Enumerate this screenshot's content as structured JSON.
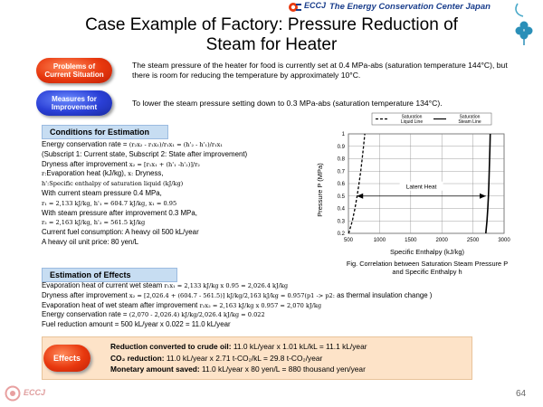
{
  "header": {
    "org_short": "ECCJ",
    "org_full": "The Energy Conservation Center Japan"
  },
  "title_line1": "Case Example of Factory: Pressure Reduction of",
  "title_line2": "Steam for Heater",
  "problems": {
    "label_line1": "Problems of",
    "label_line2": "Current Situation",
    "text": "The steam pressure of the heater for food is currently set at 0.4 MPa-abs (saturation temperature 144°C), but there is room for reducing the temperature by approximately 10°C."
  },
  "measures": {
    "label_line1": "Measures for",
    "label_line2": "Improvement",
    "text": "To lower the steam pressure setting down to 0.3 MPa-abs (saturation temperature 134°C)."
  },
  "conditions": {
    "heading": "Conditions for Estimation",
    "lines": {
      "l1a": "Energy conservation rate = ",
      "l1b": "(r₂x₂ - r₁x₁)/r₁x₁ = (h'₂ - h'₁)/r₁x₁",
      "l2": "(Subscript 1: Current state, Subscript 2: State after improvement)",
      "l3a": "Dryness after improvement ",
      "l3b": "x₂ = [r₁x₁ + (h'₁ -h'₂)]/r₂",
      "l4a": "r:",
      "l4b": "Evaporation heat (kJ/kg), ",
      "l4c": "x:",
      "l4d": " Dryness,",
      "l5a": "h':",
      "l5b": "Specific enthalpy of saturation liquid (kJ/kg)",
      "l6": "With current steam pressure 0.4 MPa,",
      "l7": "r₁ = 2,133 kJ/kg, h'₁ = 604.7 kJ/kg, x₁ = 0.95",
      "l8": "With steam pressure after improvement 0.3 MPa,",
      "l9": "r₂ = 2,163 kJ/kg, h'₂ = 561.5 kJ/kg",
      "l10": "Current fuel consumption: A heavy oil 500 kL/year",
      "l11": "A heavy oil unit price: 80 yen/L"
    }
  },
  "estimation": {
    "heading": "Estimation of Effects",
    "e1a": "Evaporation heat of current wet steam ",
    "e1b": "r₁x₁ = 2,133 kJ/kg x 0.95 = 2,026.4 kJ/kg",
    "e2a": "Dryness after improvement ",
    "e2b": "x₂ = [2,026.4 + (604.7 - 561.5)] kJ/kg/2,163 kJ/kg = 0.957(p1 -> p2:",
    "e2c": " as thermal insulation change )",
    "e3a": "Evaporation heat of wet steam after improvement ",
    "e3b": "r₂x₂ = 2,163 kJ/kg x 0.957 = 2,070 kJ/kg",
    "e4a": "Energy conservation rate = ",
    "e4b": "(2,070 - 2,026.4) kJ/kg/2,026.4 kJ/kg = 0.022",
    "e5": "Fuel reduction amount = 500 kL/year x 0.022 = 11.0 kL/year"
  },
  "effects": {
    "label": "Effects",
    "l1_bold": "Reduction converted to crude oil:",
    "l1_rest": " 11.0 kL/year x 1.01 kL/kL = 11.1 kL/year",
    "l2_bold": "CO₂ reduction:",
    "l2_rest": " 11.0 kL/year x 2.71 t-CO₂/kL = 29.8 t-CO₂/year",
    "l3_bold": "Monetary amount saved:",
    "l3_rest": " 11.0 kL/year x 80 yen/L = 880 thousand yen/year"
  },
  "chart_data": {
    "type": "line",
    "xlabel": "Specific Enthalpy (kJ/kg)",
    "ylabel": "Pressure P (MPa)",
    "xlim": [
      500,
      3000
    ],
    "ylim": [
      0.2,
      1.0
    ],
    "xticks": [
      "500",
      "1000",
      "1500",
      "2000",
      "2500",
      "3000"
    ],
    "yticks": [
      "0.2",
      "0.3",
      "0.4",
      "0.5",
      "0.6",
      "0.7",
      "0.8",
      "0.9",
      "1"
    ],
    "grid": true,
    "legend_position": "top",
    "legend": [
      {
        "name": "Saturation Liquid Line",
        "style": "dashed"
      },
      {
        "name": "Saturation Steam Line",
        "style": "solid"
      }
    ],
    "series": [
      {
        "name": "Saturation Liquid Line",
        "points": [
          [
            504,
            0.2
          ],
          [
            562,
            0.3
          ],
          [
            605,
            0.4
          ],
          [
            640,
            0.5
          ],
          [
            670,
            0.6
          ],
          [
            697,
            0.7
          ],
          [
            721,
            0.8
          ],
          [
            743,
            0.9
          ],
          [
            763,
            1.0
          ]
        ]
      },
      {
        "name": "Saturation Steam Line",
        "points": [
          [
            2706,
            0.2
          ],
          [
            2725,
            0.3
          ],
          [
            2738,
            0.4
          ],
          [
            2748,
            0.5
          ],
          [
            2756,
            0.6
          ],
          [
            2762,
            0.7
          ],
          [
            2768,
            0.8
          ],
          [
            2773,
            0.9
          ],
          [
            2777,
            1.0
          ]
        ]
      }
    ],
    "annotation": {
      "text": "Latent Heat",
      "x_from": 605,
      "x_to": 2738,
      "y": 0.5
    }
  },
  "fig_caption_line1": "Fig. Correlation between Saturation Steam Pressure P",
  "fig_caption_line2": "and Specific Enthalpy h",
  "footer": {
    "org_short": "ECCJ",
    "page_number": "64"
  }
}
